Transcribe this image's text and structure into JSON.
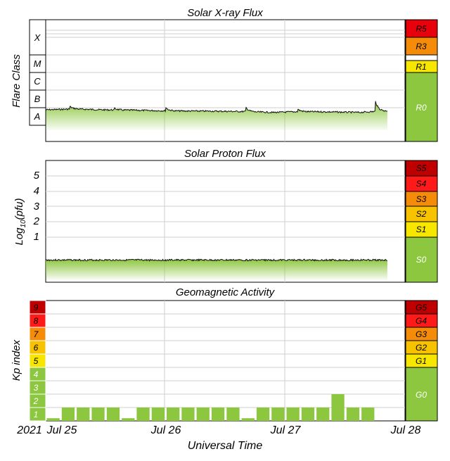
{
  "charts": {
    "xray": {
      "title": "Solar X-ray Flux",
      "ylabel": "Flare Class",
      "classes": [
        "X",
        "M",
        "C",
        "B",
        "A"
      ],
      "scale": [
        "R5",
        "R3",
        "R1",
        "R0"
      ],
      "color": "#8dc63f"
    },
    "proton": {
      "title": "Solar Proton Flux",
      "ylabel": "Log",
      "ylabel_sub": "10",
      "ylabel_tail": "(pfu)",
      "ticks": [
        "1",
        "2",
        "3",
        "4",
        "5"
      ],
      "scale": [
        "S5",
        "S4",
        "S3",
        "S2",
        "S1",
        "S0"
      ]
    },
    "geomag": {
      "title": "Geomagnetic Activity",
      "ylabel": "Kp index",
      "kp_levels": [
        "1",
        "2",
        "3",
        "4",
        "5",
        "6",
        "7",
        "8",
        "9"
      ],
      "scale": [
        "G5",
        "G4",
        "G3",
        "G2",
        "G1",
        "G0"
      ]
    }
  },
  "xaxis": {
    "xlabel": "Universal Time",
    "year": "2021",
    "ticks": [
      "Jul 25",
      "Jul 26",
      "Jul 27",
      "Jul 28"
    ]
  },
  "chart_data": [
    {
      "type": "area",
      "title": "Solar X-ray Flux",
      "ylabel": "Flare Class",
      "y_scale": "log",
      "y_categories": [
        "A",
        "B",
        "C",
        "M",
        "X"
      ],
      "x": [
        "Jul 25",
        "Jul 25.25",
        "Jul 25.5",
        "Jul 25.75",
        "Jul 26",
        "Jul 26.25",
        "Jul 26.5",
        "Jul 26.75",
        "Jul 27",
        "Jul 27.25",
        "Jul 27.5",
        "Jul 27.75",
        "Jul 27.85"
      ],
      "series": [
        {
          "values": [
            1.4,
            1.45,
            1.4,
            1.38,
            1.35,
            1.33,
            1.32,
            1.3,
            1.25,
            1.3,
            1.28,
            1.25,
            1.35
          ]
        }
      ]
    },
    {
      "type": "area",
      "title": "Solar Proton Flux",
      "ylabel": "Log10(pfu)",
      "ylim": [
        -1,
        6
      ],
      "x": [
        "Jul 25",
        "Jul 26",
        "Jul 27",
        "Jul 27.85"
      ],
      "series": [
        {
          "values": [
            -0.3,
            -0.3,
            -0.3,
            -0.3
          ]
        }
      ]
    },
    {
      "type": "bar",
      "title": "Geomagnetic Activity",
      "ylabel": "Kp index",
      "xlabel": "Universal Time",
      "ylim": [
        0,
        9
      ],
      "categories": [
        "Jul 25 00",
        "Jul 25 03",
        "Jul 25 06",
        "Jul 25 09",
        "Jul 25 12",
        "Jul 25 15",
        "Jul 25 18",
        "Jul 25 21",
        "Jul 26 00",
        "Jul 26 03",
        "Jul 26 06",
        "Jul 26 09",
        "Jul 26 12",
        "Jul 26 15",
        "Jul 26 18",
        "Jul 26 21",
        "Jul 27 00",
        "Jul 27 03",
        "Jul 27 06",
        "Jul 27 09",
        "Jul 27 12",
        "Jul 27 15",
        "Jul 27 18",
        "Jul 27 21"
      ],
      "values": [
        0.2,
        1,
        1,
        1,
        1,
        0.2,
        1,
        1,
        1,
        1,
        1,
        1,
        1,
        0.2,
        1,
        1,
        1,
        1,
        1,
        2,
        1,
        1,
        0,
        0
      ]
    }
  ]
}
